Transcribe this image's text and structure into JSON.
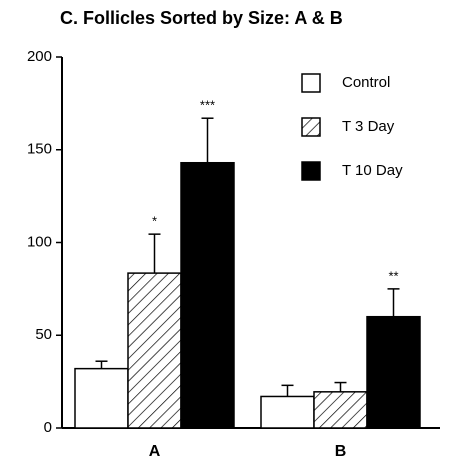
{
  "chart_data": {
    "type": "bar",
    "title": "C. Follicles Sorted by Size: A & B",
    "categories": [
      "A",
      "B"
    ],
    "series": [
      {
        "name": "Control",
        "color": "#ffffff",
        "values": [
          32,
          17
        ],
        "errors": [
          4,
          6
        ]
      },
      {
        "name": "T 3 Day",
        "color": "#ffffff",
        "pattern": "hatch",
        "values": [
          83.5,
          19.5
        ],
        "errors": [
          21,
          5
        ],
        "significance": [
          "*",
          null
        ]
      },
      {
        "name": "T 10 Day",
        "color": "#000000",
        "values": [
          143,
          60
        ],
        "errors": [
          24,
          15
        ],
        "significance": [
          "***",
          "**"
        ]
      }
    ],
    "ylim": [
      0,
      200
    ],
    "yticks": [
      0,
      50,
      100,
      150,
      200
    ],
    "legend": "upper right",
    "grid": false
  }
}
